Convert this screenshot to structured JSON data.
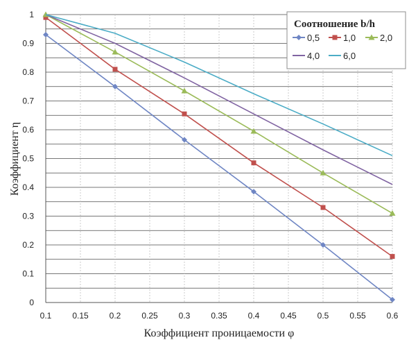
{
  "chart_data": {
    "type": "line",
    "xlabel": "Коэффициент проницаемости φ",
    "ylabel": "Коэффициент η",
    "xlim": [
      0.1,
      0.6
    ],
    "ylim": [
      0,
      1
    ],
    "x_ticks": [
      "0.1",
      "0.15",
      "0.2",
      "0.25",
      "0.3",
      "0.35",
      "0.4",
      "0.45",
      "0.5",
      "0.55",
      "0.6"
    ],
    "y_ticks": [
      "0",
      "0.1",
      "0.2",
      "0.3",
      "0.4",
      "0.5",
      "0.6",
      "0.7",
      "0.8",
      "0.9",
      "1"
    ],
    "grid": true,
    "legend": {
      "title": "Соотношение b/h",
      "position": "top-right"
    },
    "x": [
      0.1,
      0.2,
      0.3,
      0.4,
      0.5,
      0.6
    ],
    "series": [
      {
        "name": "0,5",
        "color": "#6f86c4",
        "marker": "diamond",
        "values": [
          0.93,
          0.75,
          0.565,
          0.385,
          0.2,
          0.01
        ]
      },
      {
        "name": "1,0",
        "color": "#c0504d",
        "marker": "square",
        "values": [
          0.99,
          0.81,
          0.655,
          0.485,
          0.33,
          0.16
        ]
      },
      {
        "name": "2,0",
        "color": "#9bbb59",
        "marker": "triangle",
        "values": [
          1.0,
          0.87,
          0.735,
          0.595,
          0.45,
          0.31
        ]
      },
      {
        "name": "4,0",
        "color": "#8064a2",
        "marker": "none",
        "values": [
          1.0,
          0.9,
          0.78,
          0.655,
          0.53,
          0.41
        ]
      },
      {
        "name": "6,0",
        "color": "#4bacc6",
        "marker": "none",
        "values": [
          1.0,
          0.935,
          0.835,
          0.725,
          0.62,
          0.51
        ]
      }
    ]
  }
}
